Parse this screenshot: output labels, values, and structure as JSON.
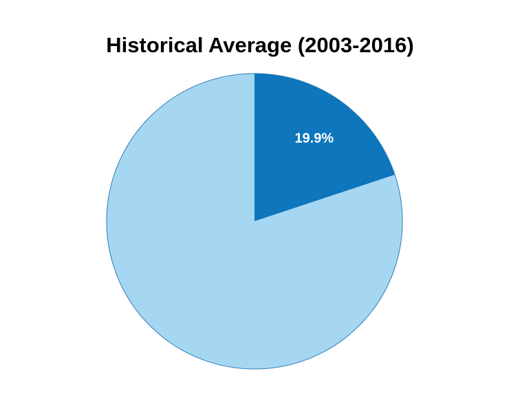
{
  "page": {
    "background_color": "#ffffff"
  },
  "chart_data": {
    "type": "pie",
    "title": "Historical Average (2003-2016)",
    "start_angle_deg": 0,
    "direction": "clockwise",
    "legend": "none",
    "outline_color": "#2f7ab5",
    "slices": [
      {
        "name": "highlighted-share",
        "value": 19.9,
        "label": "19.9%",
        "color": "#0d76bc",
        "label_color": "#ffffff"
      },
      {
        "name": "remainder-share",
        "value": 80.1,
        "label": "",
        "color": "#a6d7f2",
        "label_color": ""
      }
    ]
  }
}
